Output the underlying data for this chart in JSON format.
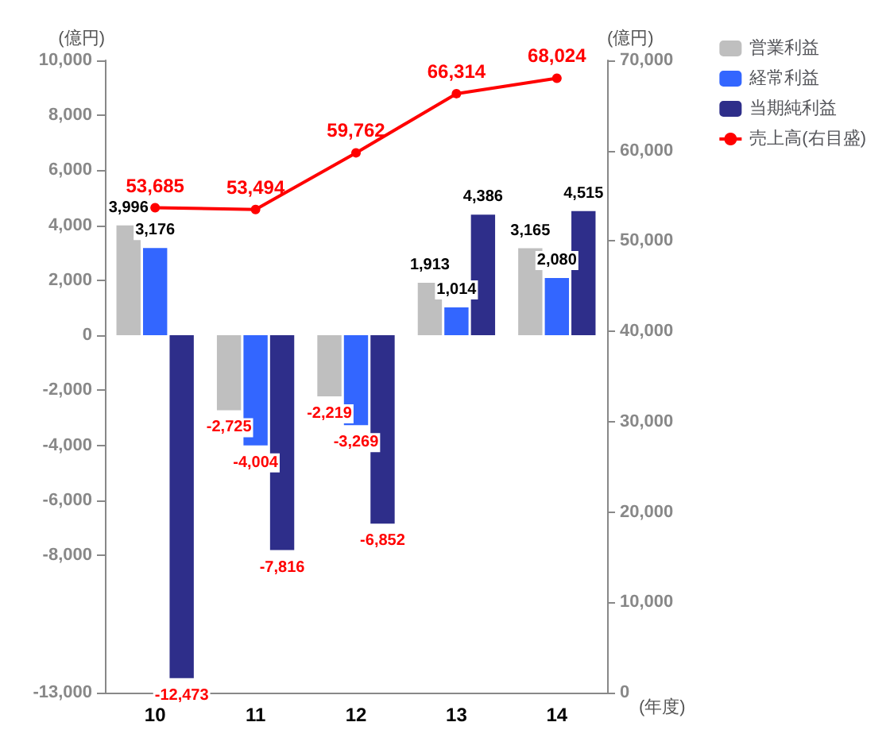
{
  "chart_data": {
    "type": "bar",
    "categories": [
      "10",
      "11",
      "12",
      "13",
      "14"
    ],
    "series": [
      {
        "name": "営業利益",
        "color": "#bfbfbf",
        "values": [
          3996,
          -2725,
          -2219,
          1913,
          3165
        ],
        "value_labels": [
          "3,996",
          "-2,725",
          "-2,219",
          "1,913",
          "3,165"
        ]
      },
      {
        "name": "経常利益",
        "color": "#3366ff",
        "values": [
          3176,
          -4004,
          -3269,
          1014,
          2080
        ],
        "value_labels": [
          "3,176",
          "-4,004",
          "-3,269",
          "1,014",
          "2,080"
        ]
      },
      {
        "name": "当期純利益",
        "color": "#2e2e8a",
        "values": [
          -12473,
          -7816,
          -6852,
          4386,
          4515
        ],
        "value_labels": [
          "-12,473",
          "-7,816",
          "-6,852",
          "4,386",
          "4,515"
        ]
      },
      {
        "name": "売上高(右目盛)",
        "type": "line",
        "axis": "y2",
        "color": "#ff0000",
        "values": [
          53685,
          53494,
          59762,
          66314,
          68024
        ],
        "value_labels": [
          "53,685",
          "53,494",
          "59,762",
          "66,314",
          "68,024"
        ]
      }
    ],
    "ylabel": "(億円)",
    "y2label": "(億円)",
    "xlabel": "(年度)",
    "ylim": [
      -13000,
      10000
    ],
    "yticks": [
      {
        "value": -13000,
        "label": "-13,000"
      },
      {
        "value": -8000,
        "label": "-8,000"
      },
      {
        "value": -6000,
        "label": "-6,000"
      },
      {
        "value": -4000,
        "label": "-4,000"
      },
      {
        "value": -2000,
        "label": "-2,000"
      },
      0,
      {
        "value": 2000,
        "label": "2,000"
      },
      {
        "value": 4000,
        "label": "4,000"
      },
      {
        "value": 6000,
        "label": "6,000"
      },
      {
        "value": 8000,
        "label": "8,000"
      },
      {
        "value": 10000,
        "label": "10,000"
      }
    ],
    "y2lim": [
      0,
      70000
    ],
    "y2ticks": [
      0,
      {
        "value": 10000,
        "label": "10,000"
      },
      {
        "value": 20000,
        "label": "20,000"
      },
      {
        "value": 30000,
        "label": "30,000"
      },
      {
        "value": 40000,
        "label": "40,000"
      },
      {
        "value": 50000,
        "label": "50,000"
      },
      {
        "value": 60000,
        "label": "60,000"
      },
      {
        "value": 70000,
        "label": "70,000"
      }
    ],
    "legend": "top right",
    "grid": false,
    "marker": "circle"
  }
}
